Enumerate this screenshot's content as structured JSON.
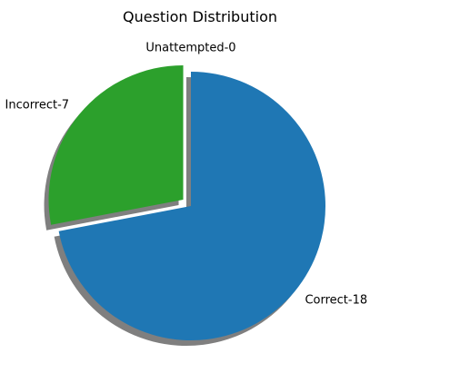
{
  "chart_data": {
    "type": "pie",
    "title": "Question Distribution",
    "slices": [
      {
        "label": "Correct-18",
        "value": 18,
        "color": "#1f77b4",
        "exploded": false
      },
      {
        "label": "Incorrect-7",
        "value": 7,
        "color": "#2ca02c",
        "exploded": true
      },
      {
        "label": "Unattempted-0",
        "value": 0,
        "color": "#ff7f0e",
        "exploded": true
      }
    ],
    "start_angle_deg": 90,
    "direction": "clockwise",
    "shadow": true,
    "shadow_color": "#7f7f7f"
  }
}
